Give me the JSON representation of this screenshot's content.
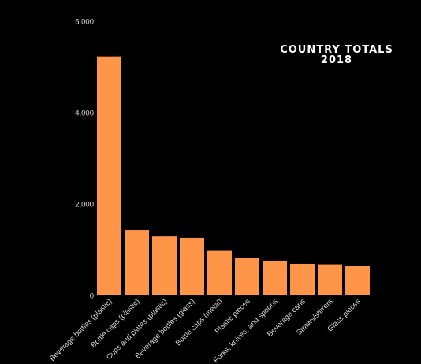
{
  "chart_data": {
    "type": "bar",
    "title_lines": [
      "COUNTRY TOTALS",
      "2018"
    ],
    "xlabel": "",
    "ylabel": "",
    "categories": [
      "Beverage bottles (plastic)",
      "Bottle caps (plastic)",
      "Cups and plates (plastic)",
      "Beverage bottles (glass)",
      "Bottle caps (metal)",
      "Plastic pieces",
      "Forks, knives, and spoons",
      "Beverage cans",
      "Straws/stirrers",
      "Glass pieces"
    ],
    "values": [
      5230,
      1430,
      1290,
      1260,
      990,
      810,
      760,
      690,
      680,
      640
    ],
    "ylim": [
      0,
      6000
    ],
    "yticks": [
      0,
      2000,
      4000,
      6000
    ],
    "ytick_labels": [
      "0",
      "2,000",
      "4,000",
      "6,000"
    ],
    "grid": false,
    "legend": "none",
    "bar_color": "#ff9548",
    "background_color": "#000000",
    "text_color": "#ffffff"
  }
}
